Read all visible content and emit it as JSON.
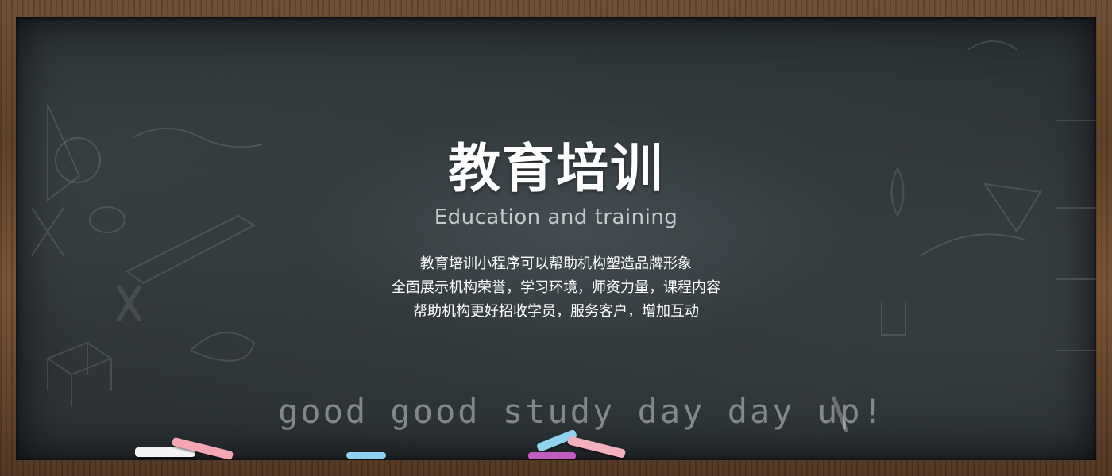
{
  "banner": {
    "title": "教育培训",
    "subtitle": "Education and training",
    "description_lines": [
      "教育培训小程序可以帮助机构塑造品牌形象",
      "全面展示机构荣誉，学习环境，师资力量，课程内容",
      "帮助机构更好招收学员，服务客户，增加互动"
    ],
    "slogan": "good good study day day up!"
  },
  "colors": {
    "board": "#2f3639",
    "frame": "#5e4028",
    "title": "#ffffff",
    "subtitle": "#c7cacc",
    "chalk_white": "#f2f2f2",
    "chalk_pink": "#f4a6b2",
    "chalk_blue": "#8fd3f0",
    "chalk_purple": "#c15dbf"
  }
}
